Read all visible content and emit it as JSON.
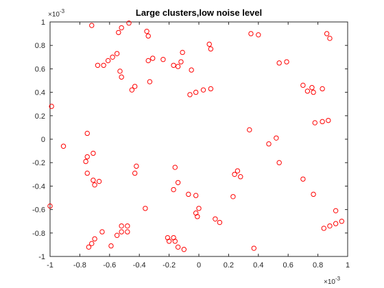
{
  "chart_data": {
    "type": "scatter",
    "title": "Large clusters,low noise level",
    "xlabel": "",
    "ylabel": "",
    "xlim": [
      -1,
      1
    ],
    "ylim": [
      -1,
      1
    ],
    "x_ticks": [
      -1,
      -0.8,
      -0.6,
      -0.4,
      -0.2,
      0,
      0.2,
      0.4,
      0.6,
      0.8,
      1
    ],
    "x_tick_labels": [
      "-1",
      "-0.8",
      "-0.6",
      "-0.4",
      "-0.2",
      "0",
      "0.2",
      "0.4",
      "0.6",
      "0.8",
      "1"
    ],
    "y_ticks": [
      -1,
      -0.8,
      -0.6,
      -0.4,
      -0.2,
      0,
      0.2,
      0.4,
      0.6,
      0.8,
      1
    ],
    "y_tick_labels": [
      "-1",
      "-0.8",
      "-0.6",
      "-0.4",
      "-0.2",
      "0",
      "0.2",
      "0.4",
      "0.6",
      "0.8",
      "1"
    ],
    "x_exponent": "×10",
    "x_exponent_power": "-3",
    "y_exponent": "×10",
    "y_exponent_power": "-3",
    "grid": false,
    "marker": "circle-open",
    "marker_color": "#ff0000",
    "axis_color": "#262626",
    "series": [
      {
        "points": [
          [
            -0.72,
            0.97
          ],
          [
            -0.52,
            0.95
          ],
          [
            -0.54,
            0.91
          ],
          [
            -0.47,
            0.99
          ],
          [
            -0.35,
            0.92
          ],
          [
            -0.34,
            0.88
          ],
          [
            -0.55,
            0.73
          ],
          [
            -0.58,
            0.7
          ],
          [
            -0.61,
            0.67
          ],
          [
            -0.64,
            0.63
          ],
          [
            -0.68,
            0.63
          ],
          [
            -0.53,
            0.58
          ],
          [
            -0.52,
            0.53
          ],
          [
            -0.43,
            0.45
          ],
          [
            -0.45,
            0.42
          ],
          [
            -0.33,
            0.49
          ],
          [
            -0.34,
            0.67
          ],
          [
            -0.31,
            0.69
          ],
          [
            -0.24,
            0.68
          ],
          [
            -0.17,
            0.63
          ],
          [
            -0.14,
            0.62
          ],
          [
            -0.12,
            0.66
          ],
          [
            -0.11,
            0.74
          ],
          [
            -0.05,
            0.59
          ],
          [
            0.07,
            0.81
          ],
          [
            0.08,
            0.77
          ],
          [
            -0.06,
            0.38
          ],
          [
            -0.02,
            0.4
          ],
          [
            0.03,
            0.42
          ],
          [
            0.08,
            0.43
          ],
          [
            0.35,
            0.9
          ],
          [
            0.4,
            0.89
          ],
          [
            0.54,
            0.65
          ],
          [
            0.59,
            0.66
          ],
          [
            0.7,
            0.46
          ],
          [
            0.73,
            0.41
          ],
          [
            0.76,
            0.44
          ],
          [
            0.77,
            0.4
          ],
          [
            0.83,
            0.43
          ],
          [
            0.86,
            0.9
          ],
          [
            0.88,
            0.86
          ],
          [
            -0.99,
            0.28
          ],
          [
            -0.91,
            -0.06
          ],
          [
            -0.75,
            0.05
          ],
          [
            -0.75,
            -0.15
          ],
          [
            -0.71,
            -0.12
          ],
          [
            -0.76,
            -0.19
          ],
          [
            -0.75,
            -0.29
          ],
          [
            -0.71,
            -0.35
          ],
          [
            -0.7,
            -0.39
          ],
          [
            -0.67,
            -0.36
          ],
          [
            -0.42,
            -0.23
          ],
          [
            -0.43,
            -0.29
          ],
          [
            -0.16,
            -0.24
          ],
          [
            -0.14,
            -0.37
          ],
          [
            -0.17,
            -0.43
          ],
          [
            -0.07,
            -0.47
          ],
          [
            -0.02,
            -0.48
          ],
          [
            0.34,
            0.08
          ],
          [
            0.47,
            -0.04
          ],
          [
            0.52,
            0.01
          ],
          [
            0.54,
            -0.2
          ],
          [
            0.78,
            0.14
          ],
          [
            0.83,
            0.15
          ],
          [
            0.87,
            0.16
          ],
          [
            0.26,
            -0.27
          ],
          [
            0.24,
            -0.3
          ],
          [
            0.28,
            -0.32
          ],
          [
            0.7,
            -0.34
          ],
          [
            0.77,
            -0.47
          ],
          [
            0.23,
            -0.49
          ],
          [
            -1.0,
            -0.57
          ],
          [
            -0.74,
            -0.92
          ],
          [
            -0.72,
            -0.89
          ],
          [
            -0.7,
            -0.85
          ],
          [
            -0.65,
            -0.79
          ],
          [
            -0.59,
            -0.91
          ],
          [
            -0.55,
            -0.82
          ],
          [
            -0.52,
            -0.74
          ],
          [
            -0.48,
            -0.74
          ],
          [
            -0.52,
            -0.79
          ],
          [
            -0.48,
            -0.79
          ],
          [
            -0.36,
            -0.59
          ],
          [
            -0.21,
            -0.84
          ],
          [
            -0.2,
            -0.87
          ],
          [
            -0.17,
            -0.84
          ],
          [
            -0.16,
            -0.87
          ],
          [
            -0.14,
            -0.92
          ],
          [
            -0.1,
            -0.94
          ],
          [
            -0.02,
            -0.63
          ],
          [
            0.0,
            -0.59
          ],
          [
            -0.01,
            -0.66
          ],
          [
            0.11,
            -0.68
          ],
          [
            0.14,
            -0.71
          ],
          [
            0.37,
            -0.93
          ],
          [
            0.84,
            -0.76
          ],
          [
            0.88,
            -0.74
          ],
          [
            0.92,
            -0.72
          ],
          [
            0.96,
            -0.7
          ],
          [
            0.92,
            -0.61
          ]
        ]
      }
    ]
  }
}
